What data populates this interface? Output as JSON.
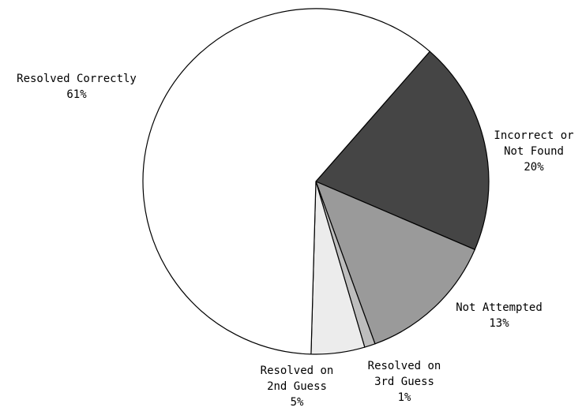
{
  "chart_data": {
    "type": "pie",
    "title": "",
    "slices": [
      {
        "label_lines": [
          "Incorrect or",
          "Not Found"
        ],
        "percent_label": "20%",
        "value": 20,
        "color": "#454545"
      },
      {
        "label_lines": [
          "Not Attempted"
        ],
        "percent_label": "13%",
        "value": 13,
        "color": "#9a9a9a"
      },
      {
        "label_lines": [
          "Resolved on",
          "3rd Guess"
        ],
        "percent_label": "1%",
        "value": 1,
        "color": "#bdbdbd"
      },
      {
        "label_lines": [
          "Resolved on",
          "2nd Guess"
        ],
        "percent_label": "5%",
        "value": 5,
        "color": "#ececec"
      },
      {
        "label_lines": [
          "Resolved Correctly"
        ],
        "percent_label": "61%",
        "value": 61,
        "color": "#ffffff"
      }
    ]
  }
}
